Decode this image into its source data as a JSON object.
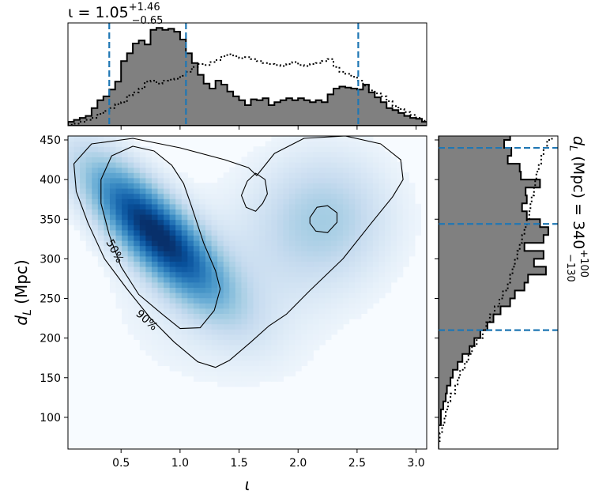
{
  "chart_data": [
    {
      "type": "heatmap",
      "panel": "joint",
      "xlabel": "ι",
      "ylabel_main": "d",
      "ylabel_sub": "L",
      "ylabel_unit": " (Mpc)",
      "xlim": [
        0.05,
        3.09
      ],
      "ylim": [
        60,
        455
      ],
      "x_ticks": [
        "0.5",
        "1.0",
        "1.5",
        "2.0",
        "2.5",
        "3.0"
      ],
      "x_tick_values": [
        0.5,
        1.0,
        1.5,
        2.0,
        2.5,
        3.0
      ],
      "y_ticks": [
        "100",
        "150",
        "200",
        "250",
        "300",
        "350",
        "400",
        "450"
      ],
      "y_tick_values": [
        100,
        150,
        200,
        250,
        300,
        350,
        400,
        450
      ],
      "colormap": "Blues",
      "density_peaks": [
        {
          "x": 0.78,
          "y": 335,
          "weight": 1.0
        },
        {
          "x": 2.22,
          "y": 352,
          "weight": 0.28
        }
      ],
      "contour_labels": [
        "50%",
        "90%"
      ],
      "contour_levels": [
        {
          "label": "50%",
          "paths": [
            [
              [
                0.33,
                400
              ],
              [
                0.42,
                430
              ],
              [
                0.6,
                442
              ],
              [
                0.78,
                436
              ],
              [
                0.93,
                418
              ],
              [
                1.03,
                395
              ],
              [
                1.1,
                365
              ],
              [
                1.2,
                320
              ],
              [
                1.3,
                285
              ],
              [
                1.34,
                262
              ],
              [
                1.29,
                235
              ],
              [
                1.17,
                213
              ],
              [
                1.0,
                212
              ],
              [
                0.85,
                230
              ],
              [
                0.65,
                255
              ],
              [
                0.5,
                290
              ],
              [
                0.4,
                330
              ],
              [
                0.33,
                370
              ],
              [
                0.33,
                400
              ]
            ],
            [
              [
                2.1,
                352
              ],
              [
                2.16,
                365
              ],
              [
                2.25,
                367
              ],
              [
                2.33,
                358
              ],
              [
                2.33,
                346
              ],
              [
                2.25,
                333
              ],
              [
                2.15,
                335
              ],
              [
                2.1,
                345
              ],
              [
                2.1,
                352
              ]
            ]
          ]
        },
        {
          "label": "90%",
          "paths": [
            [
              [
                0.1,
                420
              ],
              [
                0.25,
                445
              ],
              [
                0.6,
                452
              ],
              [
                1.0,
                440
              ],
              [
                1.38,
                425
              ],
              [
                1.58,
                415
              ],
              [
                1.65,
                405
              ],
              [
                1.8,
                433
              ],
              [
                2.05,
                452
              ],
              [
                2.4,
                455
              ],
              [
                2.7,
                445
              ],
              [
                2.87,
                425
              ],
              [
                2.89,
                400
              ],
              [
                2.8,
                378
              ],
              [
                2.62,
                345
              ],
              [
                2.38,
                300
              ],
              [
                2.1,
                260
              ],
              [
                1.9,
                230
              ],
              [
                1.75,
                215
              ],
              [
                1.6,
                195
              ],
              [
                1.42,
                172
              ],
              [
                1.3,
                163
              ],
              [
                1.15,
                170
              ],
              [
                0.95,
                195
              ],
              [
                0.75,
                225
              ],
              [
                0.55,
                262
              ],
              [
                0.36,
                300
              ],
              [
                0.22,
                345
              ],
              [
                0.12,
                385
              ],
              [
                0.1,
                420
              ]
            ],
            [
              [
                1.52,
                380
              ],
              [
                1.57,
                398
              ],
              [
                1.64,
                408
              ],
              [
                1.72,
                400
              ],
              [
                1.74,
                382
              ],
              [
                1.7,
                370
              ],
              [
                1.64,
                360
              ],
              [
                1.56,
                365
              ],
              [
                1.52,
                380
              ]
            ]
          ]
        }
      ]
    },
    {
      "type": "histogram",
      "panel": "top-marginal",
      "title_prefix": "ι = ",
      "title_value": "1.05",
      "title_upper": "+1.46",
      "title_lower": "−0.65",
      "xlim": [
        0.05,
        3.09
      ],
      "series": [
        {
          "style": "filled-step",
          "bin_edges_start": 0.05,
          "bin_width": 0.05,
          "values": [
            0.04,
            0.06,
            0.08,
            0.1,
            0.18,
            0.26,
            0.3,
            0.37,
            0.45,
            0.66,
            0.74,
            0.84,
            0.87,
            0.83,
            0.98,
            1.0,
            0.98,
            0.99,
            0.96,
            0.88,
            0.74,
            0.64,
            0.52,
            0.43,
            0.38,
            0.46,
            0.42,
            0.35,
            0.3,
            0.26,
            0.21,
            0.27,
            0.26,
            0.28,
            0.21,
            0.24,
            0.26,
            0.28,
            0.26,
            0.28,
            0.26,
            0.24,
            0.26,
            0.24,
            0.32,
            0.38,
            0.4,
            0.39,
            0.38,
            0.37,
            0.42,
            0.34,
            0.29,
            0.24,
            0.18,
            0.16,
            0.13,
            0.1,
            0.08,
            0.07,
            0.04
          ]
        },
        {
          "style": "dotted-step",
          "bin_edges_start": 0.05,
          "bin_width": 0.05,
          "values": [
            0.01,
            0.02,
            0.04,
            0.06,
            0.08,
            0.12,
            0.15,
            0.18,
            0.22,
            0.24,
            0.31,
            0.34,
            0.38,
            0.45,
            0.46,
            0.43,
            0.46,
            0.47,
            0.48,
            0.51,
            0.55,
            0.6,
            0.63,
            0.62,
            0.65,
            0.67,
            0.71,
            0.73,
            0.71,
            0.69,
            0.7,
            0.68,
            0.66,
            0.64,
            0.63,
            0.62,
            0.61,
            0.63,
            0.65,
            0.62,
            0.61,
            0.63,
            0.64,
            0.66,
            0.68,
            0.6,
            0.55,
            0.53,
            0.5,
            0.46,
            0.41,
            0.36,
            0.33,
            0.3,
            0.25,
            0.2,
            0.17,
            0.14,
            0.11,
            0.08,
            0.05
          ]
        }
      ],
      "lines": [
        0.4,
        1.05,
        2.51
      ]
    },
    {
      "type": "histogram",
      "panel": "right-marginal",
      "orientation": "horizontal",
      "title_var": "d",
      "title_sub": "L",
      "title_rest": " (Mpc) = 340",
      "title_upper": "+100",
      "title_lower": "−130",
      "ylim": [
        60,
        455
      ],
      "series": [
        {
          "style": "filled-step",
          "bin_edges_start": 60,
          "bin_width": 10,
          "values": [
            0.0,
            0.0,
            0.0,
            0.02,
            0.02,
            0.04,
            0.06,
            0.07,
            0.1,
            0.12,
            0.16,
            0.2,
            0.26,
            0.3,
            0.35,
            0.41,
            0.46,
            0.52,
            0.6,
            0.64,
            0.72,
            0.75,
            0.9,
            0.8,
            0.88,
            0.72,
            0.88,
            0.92,
            0.85,
            0.74,
            0.7,
            0.74,
            0.73,
            0.85,
            0.69,
            0.68,
            0.58,
            0.61,
            0.55,
            0.6
          ]
        },
        {
          "style": "dotted-step",
          "bin_edges_start": 60,
          "bin_width": 10,
          "values": [
            0.0,
            0.01,
            0.03,
            0.05,
            0.06,
            0.08,
            0.1,
            0.14,
            0.16,
            0.18,
            0.22,
            0.25,
            0.28,
            0.32,
            0.37,
            0.4,
            0.43,
            0.47,
            0.51,
            0.54,
            0.58,
            0.6,
            0.62,
            0.64,
            0.66,
            0.68,
            0.7,
            0.72,
            0.74,
            0.76,
            0.77,
            0.78,
            0.8,
            0.81,
            0.82,
            0.84,
            0.86,
            0.88,
            0.91,
            0.95
          ]
        }
      ],
      "lines": [
        210,
        344,
        440
      ]
    }
  ]
}
